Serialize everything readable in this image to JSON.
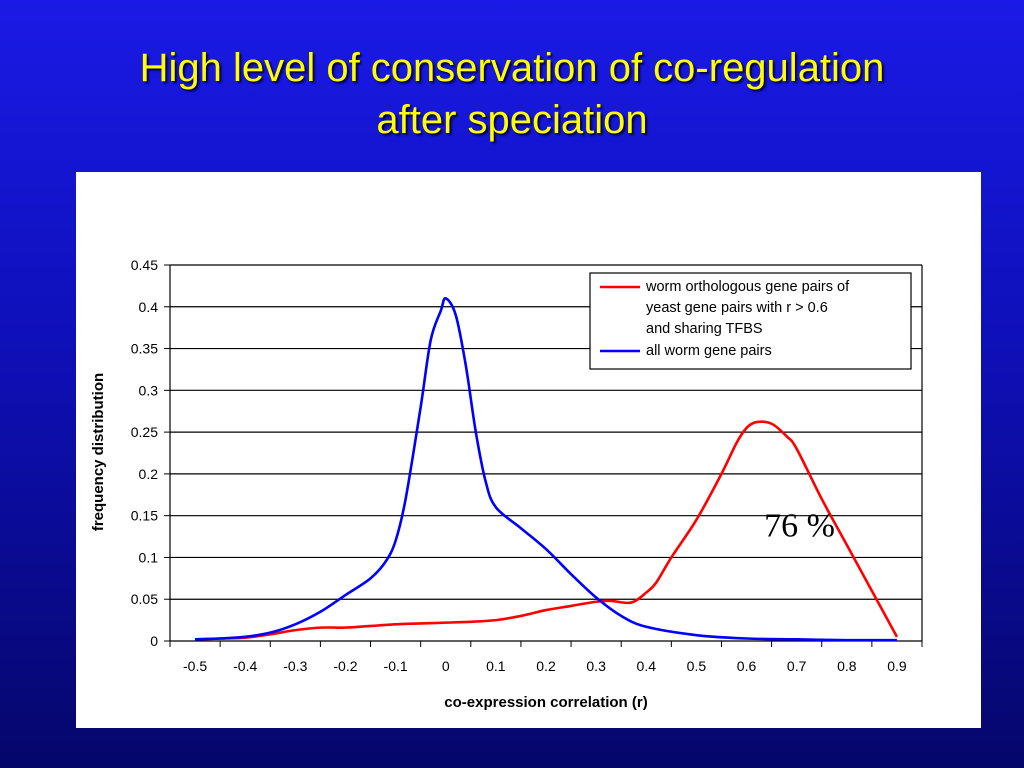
{
  "slide": {
    "title_lines": [
      "High level of conservation of co-regulation",
      "after speciation"
    ]
  },
  "chart_data": {
    "type": "line",
    "title": "",
    "xlabel": "co-expression correlation (r)",
    "ylabel": "frequency distribution",
    "xlim": [
      -0.55,
      0.95
    ],
    "ylim": [
      0,
      0.45
    ],
    "xticks": [
      "-0.5",
      "-0.4",
      "-0.3",
      "-0.2",
      "-0.1",
      "0",
      "0.1",
      "0.2",
      "0.3",
      "0.4",
      "0.5",
      "0.6",
      "0.7",
      "0.8",
      "0.9"
    ],
    "yticks": [
      "0",
      "0.05",
      "0.1",
      "0.15",
      "0.2",
      "0.25",
      "0.3",
      "0.35",
      "0.4",
      "0.45"
    ],
    "grid": "horizontal",
    "legend_position": "top-right",
    "series": [
      {
        "name": "worm orthologous gene pairs of yeast gene pairs with r > 0.6 and sharing TFBS",
        "legend_lines": [
          "worm orthologous gene pairs of",
          "yeast gene pairs with r > 0.6",
          "and sharing TFBS"
        ],
        "color": "#ff0000",
        "x": [
          -0.5,
          -0.45,
          -0.4,
          -0.35,
          -0.3,
          -0.25,
          -0.2,
          -0.15,
          -0.1,
          -0.05,
          0,
          0.05,
          0.1,
          0.15,
          0.2,
          0.25,
          0.3,
          0.33,
          0.37,
          0.4,
          0.42,
          0.45,
          0.5,
          0.55,
          0.58,
          0.6,
          0.62,
          0.65,
          0.68,
          0.7,
          0.75,
          0.8,
          0.85,
          0.9
        ],
        "y": [
          0.002,
          0.003,
          0.004,
          0.008,
          0.013,
          0.016,
          0.016,
          0.018,
          0.02,
          0.021,
          0.022,
          0.023,
          0.025,
          0.03,
          0.037,
          0.042,
          0.047,
          0.048,
          0.046,
          0.058,
          0.07,
          0.1,
          0.145,
          0.2,
          0.237,
          0.255,
          0.262,
          0.26,
          0.245,
          0.23,
          0.17,
          0.115,
          0.06,
          0.005
        ]
      },
      {
        "name": "all worm gene pairs",
        "legend_lines": [
          "all worm gene pairs"
        ],
        "color": "#0000ff",
        "x": [
          -0.5,
          -0.45,
          -0.4,
          -0.35,
          -0.3,
          -0.25,
          -0.2,
          -0.15,
          -0.12,
          -0.1,
          -0.08,
          -0.05,
          -0.03,
          -0.01,
          0,
          0.02,
          0.04,
          0.06,
          0.08,
          0.1,
          0.15,
          0.2,
          0.25,
          0.3,
          0.35,
          0.4,
          0.5,
          0.6,
          0.7,
          0.8,
          0.9
        ],
        "y": [
          0.002,
          0.003,
          0.005,
          0.01,
          0.02,
          0.035,
          0.055,
          0.075,
          0.095,
          0.12,
          0.17,
          0.28,
          0.36,
          0.395,
          0.41,
          0.39,
          0.33,
          0.25,
          0.19,
          0.16,
          0.135,
          0.11,
          0.08,
          0.052,
          0.03,
          0.017,
          0.007,
          0.003,
          0.002,
          0.001,
          0.001
        ]
      }
    ],
    "annotations": [
      {
        "text": "76 %",
        "x": 0.635,
        "y": 0.125
      }
    ]
  }
}
